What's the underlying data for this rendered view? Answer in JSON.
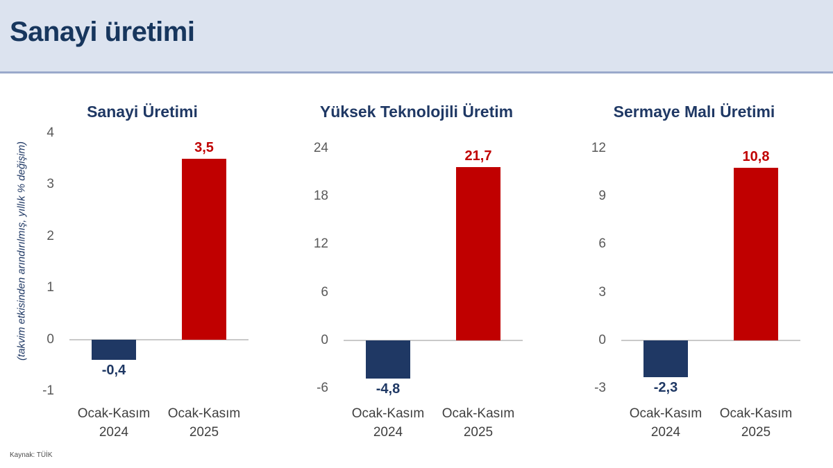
{
  "header": {
    "title": "Sanayi üretimi"
  },
  "y_axis_note": "(takvim etkisinden arındırılmış, yıllık % değişim)",
  "footer": {
    "source": "Kaynak: TÜİK"
  },
  "colors": {
    "header_bg": "#dce3ef",
    "header_text": "#17365d",
    "navy_bar": "#1f3864",
    "red_bar": "#c00000",
    "tick_text": "#595959",
    "category_text": "#3f3f3f"
  },
  "chart_data": [
    {
      "type": "bar",
      "title": "Sanayi Üretimi",
      "categories": [
        "Ocak-Kasım 2024",
        "Ocak-Kasım 2025"
      ],
      "values": [
        -0.4,
        3.5
      ],
      "value_labels": [
        "-0,4",
        "3,5"
      ],
      "bar_colors": [
        "#1f3864",
        "#c00000"
      ],
      "ticks": [
        4,
        3,
        2,
        1,
        0,
        -1
      ],
      "ylim": [
        -1,
        4
      ],
      "ylabel": "(takvim etkisinden arındırılmış, yıllık % değişim)",
      "grid": false,
      "legend": false
    },
    {
      "type": "bar",
      "title": "Yüksek Teknolojili Üretim",
      "categories": [
        "Ocak-Kasım 2024",
        "Ocak-Kasım 2025"
      ],
      "values": [
        -4.8,
        21.7
      ],
      "value_labels": [
        "-4,8",
        "21,7"
      ],
      "bar_colors": [
        "#1f3864",
        "#c00000"
      ],
      "ticks": [
        24,
        18,
        12,
        6,
        0,
        -6
      ],
      "ylim": [
        -6,
        24
      ],
      "ylabel": "(takvim etkisinden arındırılmış, yıllık % değişim)",
      "grid": false,
      "legend": false
    },
    {
      "type": "bar",
      "title": "Sermaye Malı Üretimi",
      "categories": [
        "Ocak-Kasım 2024",
        "Ocak-Kasım 2025"
      ],
      "values": [
        -2.3,
        10.8
      ],
      "value_labels": [
        "-2,3",
        "10,8"
      ],
      "bar_colors": [
        "#1f3864",
        "#c00000"
      ],
      "ticks": [
        12,
        9,
        6,
        3,
        0,
        -3
      ],
      "ylim": [
        -3,
        12
      ],
      "ylabel": "(takvim etkisinden arındırılmış, yıllık % değişim)",
      "grid": false,
      "legend": false
    }
  ]
}
